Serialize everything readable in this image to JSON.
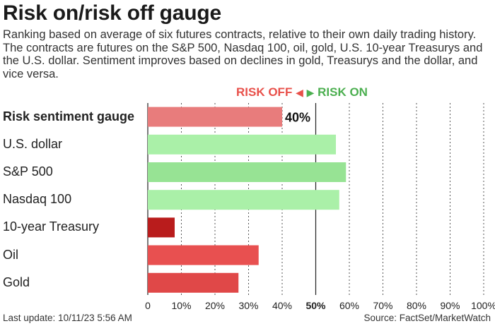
{
  "title": "Risk on/risk off gauge",
  "subtitle": "Ranking based on average of six futures contracts, relative to their own daily trading history. The contracts are futures on the S&P 500, Nasdaq 100, oil, gold, U.S. 10-year Treasurys and the U.S. dollar. Sentiment improves based on declines in gold, Treasurys and the dollar, and vice versa.",
  "legend": {
    "risk_off": "RISK OFF",
    "risk_on": "RISK ON",
    "risk_off_color": "#e8504a",
    "risk_on_color": "#4caf50"
  },
  "chart_data": {
    "type": "bar",
    "orientation": "horizontal",
    "categories": [
      "Risk sentiment gauge",
      "U.S. dollar",
      "S&P 500",
      "Nasdaq 100",
      "10-year Treasury",
      "Oil",
      "Gold"
    ],
    "values": [
      40,
      56,
      59,
      57,
      8,
      33,
      27
    ],
    "data_labels": [
      "40%",
      "",
      "",
      "",
      "",
      "",
      ""
    ],
    "bar_colors": [
      "#e87c7c",
      "#aaf0a8",
      "#97e394",
      "#aaf0a8",
      "#b91c1c",
      "#e85050",
      "#e04848"
    ],
    "xlim": [
      0,
      100
    ],
    "xticks": [
      0,
      10,
      20,
      30,
      40,
      50,
      60,
      70,
      80,
      90,
      100
    ],
    "xtick_labels": [
      "0",
      "10%",
      "20%",
      "30%",
      "40%",
      "50%",
      "60%",
      "70%",
      "80%",
      "90%",
      "100%"
    ],
    "grid": "vertical dashed",
    "midline": 50
  },
  "footer": {
    "last_update": "Last update: 10/11/23 5:56 AM",
    "source": "Source: FactSet/MarketWatch"
  }
}
